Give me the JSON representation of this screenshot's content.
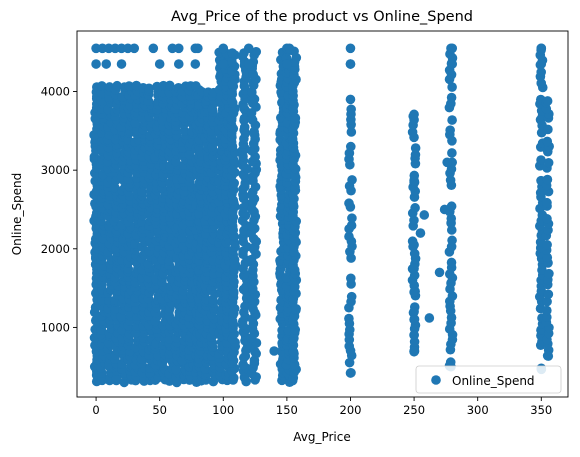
{
  "chart_data": {
    "type": "scatter",
    "title": "Avg_Price of the product vs Online_Spend",
    "xlabel": "Avg_Price",
    "ylabel": "Online_Spend",
    "xlim": [
      -15,
      371
    ],
    "ylim": [
      115,
      4770
    ],
    "xticks": [
      0,
      50,
      100,
      150,
      200,
      250,
      300,
      350
    ],
    "yticks": [
      1000,
      2000,
      3000,
      4000
    ],
    "legend_position": "lower-right",
    "grid": false,
    "point_color": "#1f77b4",
    "series": [
      {
        "name": "Online_Spend",
        "clusters": [
          {
            "x": [
              0,
              80
            ],
            "y": [
              320,
              4060
            ],
            "fill": true
          },
          {
            "x": [
              82,
              92
            ],
            "y": [
              320,
              4050
            ],
            "fill": true
          },
          {
            "x": [
              98,
              108
            ],
            "y": [
              320,
              4550
            ],
            "fill": true
          },
          {
            "x": [
              117,
              124
            ],
            "y": [
              320,
              4550
            ],
            "fill": true
          },
          {
            "x": [
              146,
              156
            ],
            "y": [
              320,
              4550
            ],
            "fill": true
          }
        ],
        "columns": [
          {
            "x": 200,
            "y_min": 420,
            "y_max": 3900
          },
          {
            "x": 250,
            "y_min": 690,
            "y_max": 3710
          },
          {
            "x": 279,
            "y_min": 500,
            "y_max": 4550
          },
          {
            "x": 350,
            "y_min": 480,
            "y_max": 4550
          },
          {
            "x": 355,
            "y_min": 640,
            "y_max": 3880
          }
        ],
        "points": [
          [
            0,
            4550
          ],
          [
            5,
            4550
          ],
          [
            10,
            4550
          ],
          [
            15,
            4550
          ],
          [
            20,
            4550
          ],
          [
            25,
            4550
          ],
          [
            30,
            4550
          ],
          [
            45,
            4550
          ],
          [
            60,
            4550
          ],
          [
            65,
            4550
          ],
          [
            78,
            4550
          ],
          [
            80,
            4550
          ],
          [
            100,
            4550
          ],
          [
            120,
            4550
          ],
          [
            150,
            4550
          ],
          [
            152,
            4550
          ],
          [
            200,
            4550
          ],
          [
            280,
            4550
          ],
          [
            350,
            4550
          ],
          [
            0,
            4350
          ],
          [
            8,
            4350
          ],
          [
            20,
            4350
          ],
          [
            50,
            4350
          ],
          [
            65,
            4350
          ],
          [
            78,
            4350
          ],
          [
            100,
            4350
          ],
          [
            120,
            4350
          ],
          [
            150,
            4350
          ],
          [
            200,
            4350
          ],
          [
            280,
            4350
          ],
          [
            350,
            4350
          ],
          [
            140,
            700
          ],
          [
            258,
            2430
          ],
          [
            270,
            1700
          ],
          [
            276,
            3100
          ],
          [
            274,
            2500
          ],
          [
            262,
            1120
          ],
          [
            255,
            2200
          ],
          [
            200,
            4350
          ],
          [
            250,
            2850
          ],
          [
            250,
            2870
          ],
          [
            250,
            2050
          ],
          [
            250,
            1750
          ],
          [
            250,
            1450
          ],
          [
            250,
            1200
          ],
          [
            250,
            1100
          ],
          [
            250,
            900
          ],
          [
            250,
            700
          ]
        ]
      }
    ]
  }
}
